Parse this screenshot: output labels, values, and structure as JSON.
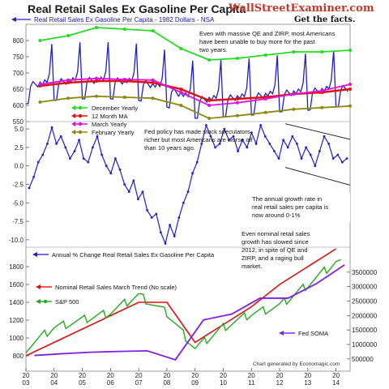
{
  "header": {
    "title": "Real Retail Sales Ex Gasoline Per Capita",
    "subtitle": "Real Retail Sales Ex Gasoline Per Capita - 1982 Dollars - NSA",
    "brand": "WallStreetExaminer.com",
    "tagline": "Get the facts."
  },
  "colors": {
    "blue_series": "#2020c0",
    "green": "#22dd22",
    "red": "#e01010",
    "magenta": "#e010e0",
    "olive": "#8a8a10",
    "purple": "#8020e0",
    "sp_green": "#22aa22"
  },
  "credit": "Chart generated by Economagic.com",
  "x_ticks": [
    "20\n03",
    "20\n04",
    "20\n05",
    "20\n06",
    "20\n07",
    "20\n08",
    "20\n09",
    "20\n10",
    "20\n11",
    "20\n12",
    "20\n13",
    "20\n14"
  ],
  "chart_data": [
    {
      "type": "line",
      "panel": "top",
      "x": [
        2003,
        2004,
        2005,
        2006,
        2007,
        2008,
        2009,
        2010,
        2011,
        2012,
        2013,
        2014
      ],
      "ylim": [
        550,
        850
      ],
      "yticks": [
        "800",
        "750",
        "700",
        "650",
        "600",
        "550"
      ],
      "series": [
        {
          "name": "December Yearly",
          "color_key": "green",
          "values": [
            800,
            815,
            840,
            835,
            830,
            775,
            740,
            745,
            755,
            765,
            765,
            770
          ]
        },
        {
          "name": "12 Month MA",
          "color_key": "red",
          "values": [
            660,
            670,
            675,
            675,
            670,
            650,
            615,
            620,
            625,
            635,
            640,
            650
          ]
        },
        {
          "name": "March Yearly",
          "color_key": "magenta",
          "values": [
            665,
            678,
            683,
            680,
            678,
            640,
            600,
            608,
            620,
            635,
            645,
            665
          ]
        },
        {
          "name": "February Yearly",
          "color_key": "olive",
          "values": [
            610,
            622,
            628,
            625,
            622,
            600,
            560,
            568,
            578,
            588,
            593,
            598
          ]
        }
      ],
      "legend": [
        "December Yearly",
        "12 Month MA",
        "March Yearly",
        "February Yearly"
      ]
    },
    {
      "type": "line",
      "panel": "middle",
      "x_range": [
        2003,
        2014.5
      ],
      "ylim": [
        -11,
        6
      ],
      "yticks": [
        "5.0",
        "2.5",
        "0.0",
        "-2.5",
        "-5.0",
        "-7.5",
        "-10.0"
      ],
      "series": [
        {
          "name": "Annual % Change Real Retail Sales Ex Gasoline Per Capita",
          "color_key": "blue_series",
          "values": [
            -3,
            -1.5,
            0.5,
            1.5,
            3,
            5.2,
            3,
            4,
            2.5,
            1,
            2,
            3.5,
            1,
            0.5,
            2.5,
            4,
            1.5,
            0,
            -1,
            1,
            -0.5,
            -2.5,
            -3.5,
            -2,
            -4.5,
            -3.5,
            -6,
            -7,
            -6.5,
            -9,
            -10.5,
            -8,
            -9.5,
            -7,
            -5,
            -3.5,
            -1,
            0.5,
            3,
            5.5,
            4,
            2.5,
            3,
            5,
            3.5,
            4,
            2,
            3.5,
            2.5,
            4.5,
            3,
            5.5,
            4,
            3,
            2,
            1,
            3.5,
            2.5,
            4,
            3,
            1,
            2.5,
            1.5,
            0,
            2,
            4,
            3,
            1,
            1.5,
            0.5,
            1
          ]
        }
      ],
      "legend": [
        "Annual % Change Real Retail Sales Ex Gasoline Per Capita"
      ]
    },
    {
      "type": "line",
      "panel": "bottom",
      "x": [
        2003,
        2004,
        2005,
        2006,
        2007,
        2008,
        2009,
        2010,
        2011,
        2012,
        2013,
        2014
      ],
      "ylim_left": [
        700,
        1900
      ],
      "ylim_right": [
        300000,
        4000000
      ],
      "yticks_left": [
        "1800",
        "1600",
        "1400",
        "1200",
        "1000",
        "800"
      ],
      "yticks_right": [
        "3500000",
        "3000000",
        "2500000",
        "2000000",
        "1500000",
        "1000000",
        "500000"
      ],
      "series": [
        {
          "name": "Nominal Retail Sales March Trend (No scale)",
          "color_key": "red",
          "values": [
            800,
            950,
            1100,
            1250,
            1400,
            1400,
            950,
            1150,
            1350,
            1600,
            1800,
            2000
          ]
        },
        {
          "name": "S&P 500",
          "color_key": "sp_green",
          "values": [
            880,
            1120,
            1200,
            1290,
            1480,
            1280,
            880,
            1120,
            1270,
            1360,
            1600,
            1850
          ]
        },
        {
          "name": "Fed SOMA",
          "color_key": "purple",
          "values": [
            620000,
            680000,
            730000,
            760000,
            780000,
            470000,
            1850000,
            2050000,
            2600000,
            2600000,
            3100000,
            3750000
          ]
        }
      ],
      "legend": [
        "Nominal Retail Sales March Trend (No scale)",
        "S&P 500",
        "Fed SOMA"
      ]
    }
  ],
  "annotations": {
    "note1": [
      "Even with massive QE and ZIRP, most Americans",
      "have been unable to buy more for the past",
      "two years."
    ],
    "note2": [
      "Fed policy has made stock speculators",
      "richer but most Americans are worse off",
      "than 10 years ago."
    ],
    "note3": [
      "The annual growth rate in",
      "real retail sales per capita is",
      "now around 0-1%"
    ],
    "note4": [
      "Even nominal retail sales",
      "growth has slowed since",
      "2012, in spite of QE and",
      "ZIRP, and a raging bull",
      "market."
    ]
  }
}
